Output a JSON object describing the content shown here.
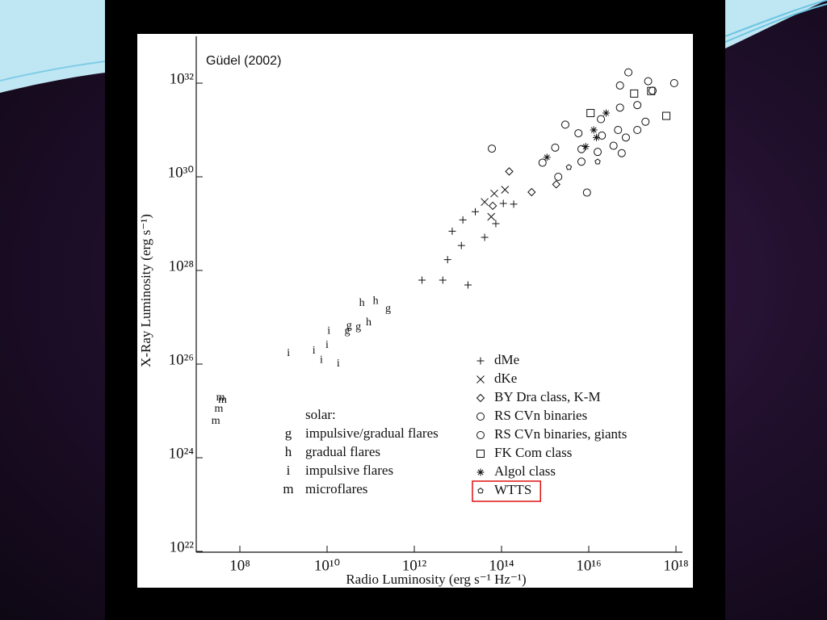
{
  "chart_data": {
    "type": "scatter",
    "annotation": "Güdel (2002)",
    "x_label": "Radio Luminosity (erg  s⁻¹ Hz⁻¹)",
    "y_label": "X-Ray Luminosity (erg  s⁻¹)",
    "x_log": true,
    "y_log": true,
    "xlim": [
      10000000.0,
      1e+18
    ],
    "ylim": [
      1e+22,
      1e+33
    ],
    "xticks": [
      {
        "value": 100000000.0,
        "label": "10⁸"
      },
      {
        "value": 10000000000.0,
        "label": "10¹⁰"
      },
      {
        "value": 1000000000000.0,
        "label": "10¹²"
      },
      {
        "value": 100000000000000.0,
        "label": "10¹⁴"
      },
      {
        "value": 1e+16,
        "label": "10¹⁶"
      },
      {
        "value": 1e+18,
        "label": "10¹⁸"
      }
    ],
    "yticks": [
      {
        "value": 1e+22,
        "label": "10²²"
      },
      {
        "value": 1e+24,
        "label": "10²⁴"
      },
      {
        "value": 1e+26,
        "label": "10²⁶"
      },
      {
        "value": 1e+28,
        "label": "10²⁸"
      },
      {
        "value": 1e+30,
        "label": "10³⁰"
      },
      {
        "value": 1e+32,
        "label": "10³²"
      }
    ],
    "solar_legend_title": "solar:",
    "series": [
      {
        "name": "impulsive/gradual flares",
        "marker": "g",
        "color": "#111111",
        "x": [
          29000000000.0,
          52000000000.0,
          32000000000.0,
          250000000000.0
        ],
        "y": [
          5e+26,
          6.2e+26,
          6.5e+26,
          1.5e+27
        ]
      },
      {
        "name": "gradual flares",
        "marker": "h",
        "color": "#111111",
        "x": [
          63000000000.0,
          130000000000.0,
          90000000000.0
        ],
        "y": [
          2e+27,
          2.2e+27,
          7.6e+26
        ]
      },
      {
        "name": "impulsive flares",
        "marker": "i",
        "color": "#111111",
        "x": [
          1300000000.0,
          5000000000.0,
          10000000000.0,
          11000000000.0,
          7400000000.0,
          18000000000.0
        ],
        "y": [
          1.7e+26,
          1.9e+26,
          2.5e+26,
          5e+26,
          1.2e+26,
          1e+26
        ]
      },
      {
        "name": "microflares",
        "marker": "m",
        "color": "#111111",
        "x": [
          36000000.0,
          40000000.0,
          33000000.0,
          28000000.0
        ],
        "y": [
          1.9e+25,
          1.7e+25,
          1.1e+25,
          6e+24
        ]
      },
      {
        "name": "dMe",
        "marker": "plus",
        "color": "#111111",
        "x": [
          1500000000000.0,
          4500000000000.0,
          17000000000000.0,
          5800000000000.0,
          12000000000000.0,
          7400000000000.0,
          13000000000000.0,
          25000000000000.0,
          41000000000000.0,
          74000000000000.0,
          110000000000000.0,
          190000000000000.0
        ],
        "y": [
          6.2e+27,
          6.2e+27,
          4.9e+27,
          1.7e+28,
          3.4e+28,
          6.9e+28,
          1.2e+29,
          1.8e+29,
          5.1e+28,
          1e+29,
          2.7e+29,
          2.6e+29
        ]
      },
      {
        "name": "dKe",
        "marker": "cross",
        "color": "#111111",
        "x": [
          41000000000000.0,
          68000000000000.0,
          58000000000000.0,
          120000000000000.0
        ],
        "y": [
          2.9e+29,
          4.4e+29,
          1.4e+29,
          5.3e+29
        ]
      },
      {
        "name": "BY Dra class, K-M",
        "marker": "diamond",
        "color": "#111111",
        "x": [
          150000000000000.0,
          490000000000000.0,
          1800000000000000.0,
          63000000000000.0
        ],
        "y": [
          1.3e+30,
          4.7e+29,
          6.9e+29,
          2.4e+29
        ]
      },
      {
        "name": "RS CVn binaries",
        "marker": "circle",
        "color": "#111111",
        "x": [
          60000000000000.0,
          870000000000000.0,
          1700000000000000.0,
          2900000000000000.0,
          2000000000000000.0,
          5800000000000000.0,
          6800000000000000.0,
          1.6e+16,
          3.7e+16,
          2e+16,
          6800000000000000.0,
          5.7e+16,
          9100000000000000.0
        ],
        "y": [
          4e+30,
          2e+30,
          4.2e+30,
          1.3e+31,
          1e+30,
          8.5e+30,
          3.9e+30,
          3.4e+30,
          4.6e+30,
          7.6e+30,
          2.1e+30,
          3.2e+30,
          4.6e+29
        ]
      },
      {
        "name": "RS CVn binaries, giants",
        "marker": "circle",
        "color": "#111111",
        "x": [
          5.2e+16,
          8.1e+16,
          2.3e+17,
          2.9e+17,
          9.1e+17,
          5.2e+16,
          1.3e+17,
          2e+17,
          4.7e+16,
          1.9e+16,
          7.1e+16,
          1.3e+17
        ],
        "y": [
          8.9e+31,
          1.7e+32,
          1.1e+32,
          6.9e+31,
          1e+32,
          3e+31,
          3.4e+31,
          1.5e+31,
          1e+31,
          1.7e+31,
          6.9e+30,
          1e+31
        ]
      },
      {
        "name": "FK Com class",
        "marker": "square",
        "color": "#111111",
        "x": [
          1.1e+16,
          1.1e+17,
          2.7e+17,
          6e+17
        ],
        "y": [
          2.3e+31,
          6e+31,
          6.8e+31,
          2e+31
        ]
      },
      {
        "name": "Algol class",
        "marker": "asterisk",
        "color": "#111111",
        "x": [
          1100000000000000.0,
          1.3e+16,
          2.5e+16,
          1.5e+16,
          8500000000000000.0
        ],
        "y": [
          2.6e+30,
          1e+31,
          2.3e+31,
          6.9e+30,
          4.4e+30
        ]
      },
      {
        "name": "WTTS",
        "marker": "pentagon",
        "color": "#111111",
        "highlighted": true,
        "x": [
          3500000000000000.0,
          1.6e+16
        ],
        "y": [
          1.6e+30,
          2.1e+30
        ]
      }
    ]
  }
}
